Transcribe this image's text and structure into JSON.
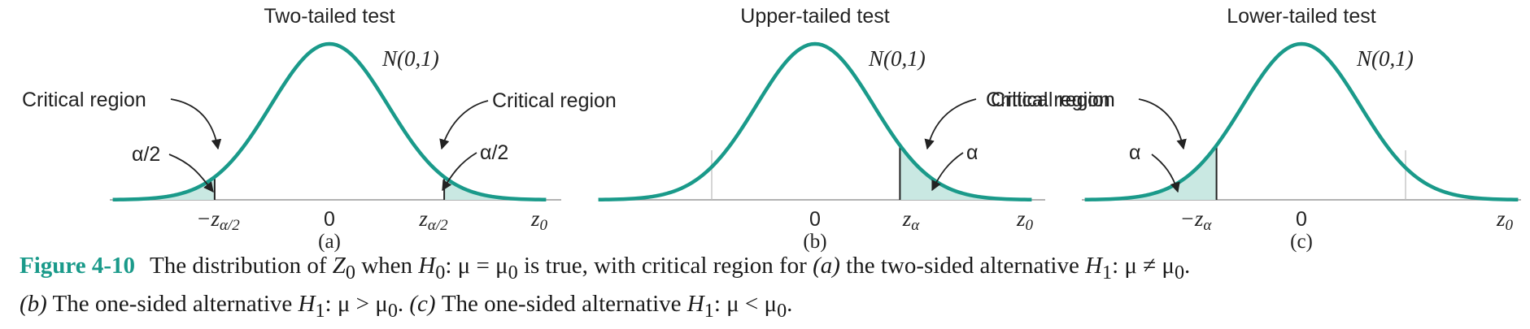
{
  "panels": [
    {
      "title": "Two-tailed test",
      "dist_label": "N(0,1)",
      "letter": "(a)",
      "callouts_left": {
        "region": "Critical region",
        "alpha": "α/2"
      },
      "callouts_right": {
        "region": "Critical region",
        "alpha": "α/2"
      },
      "ticks": {
        "left": "−z",
        "left_sub": "α/2",
        "zero": "0",
        "right": "z",
        "right_sub": "α/2",
        "axis": "z",
        "axis_sub": "0"
      }
    },
    {
      "title": "Upper-tailed test",
      "dist_label": "N(0,1)",
      "letter": "(b)",
      "callouts_right": {
        "region": "Critical region",
        "alpha": "α"
      },
      "ticks": {
        "zero": "0",
        "right": "z",
        "right_sub": "α",
        "axis": "z",
        "axis_sub": "0"
      }
    },
    {
      "title": "Lower-tailed test",
      "dist_label": "N(0,1)",
      "letter": "(c)",
      "callouts_left": {
        "region": "Critical region",
        "alpha": "α"
      },
      "ticks": {
        "left": "−z",
        "left_sub": "α",
        "zero": "0",
        "axis": "z",
        "axis_sub": "0"
      }
    }
  ],
  "colors": {
    "curve": "#1a9a8a",
    "fill": "#c9e8e2",
    "axis": "#999999",
    "caption_label": "#1a9a8a"
  },
  "caption": {
    "label": "Figure 4-10",
    "line1_a": "The distribution of ",
    "line1_z": "Z",
    "line1_z_sub": "0",
    "line1_b": " when ",
    "line1_h": "H",
    "line1_h_sub": "0",
    "line1_c": ": μ = μ",
    "line1_c_sub": "0",
    "line1_d": " is true, with critical region for ",
    "line1_e": "(a)",
    "line1_f": " the two-sided alternative ",
    "line1_h1": "H",
    "line1_h1_sub": "1",
    "line1_g": ": μ ≠ μ",
    "line1_g_sub": "0",
    "line1_end": ".",
    "line2_a": "(b)",
    "line2_b": " The one-sided alternative ",
    "line2_h": "H",
    "line2_h_sub": "1",
    "line2_c": ": μ > μ",
    "line2_c_sub": "0",
    "line2_d": ". ",
    "line2_e": "(c)",
    "line2_f": " The one-sided alternative ",
    "line2_h2": "H",
    "line2_h2_sub": "1",
    "line2_g": ": μ < μ",
    "line2_g_sub": "0",
    "line2_end": "."
  }
}
